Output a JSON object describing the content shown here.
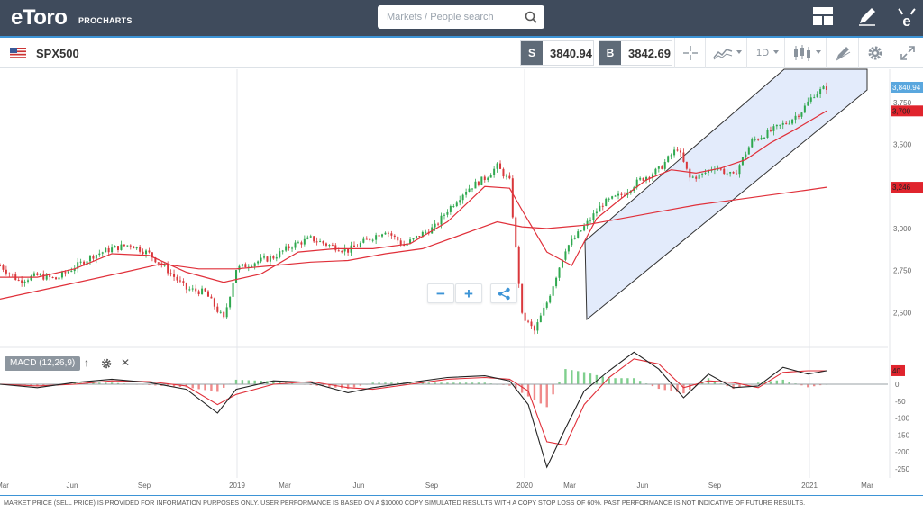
{
  "header": {
    "logo": "eToro",
    "logo_sub": "PROCHARTS",
    "search_placeholder": "Markets / People search",
    "icons": [
      "layout-icon",
      "pencil-icon",
      "etoro-e-icon"
    ]
  },
  "instrument": {
    "symbol": "SPX500",
    "sell_tag": "S",
    "sell_price": "3840.94",
    "buy_tag": "B",
    "buy_price": "3842.69",
    "timeframe": "1D"
  },
  "toolbar_icons": [
    "crosshair-icon",
    "chart-type-icon",
    "indicators-icon",
    "drawing-icon",
    "settings-gear-icon",
    "fullscreen-icon"
  ],
  "indicator": {
    "label": "MACD (12,26,9)",
    "controls": [
      "up-arrow-icon",
      "gear-icon",
      "close-icon"
    ]
  },
  "footer": {
    "disclaimer": "MARKET PRICE (SELL PRICE) IS PROVIDED FOR INFORMATION PURPOSES ONLY. USER PERFORMANCE IS BASED ON A $10000 COPY SIMULATED RESULTS WITH A COPY STOP LOSS OF 60%. PAST PERFORMANCE IS NOT INDICATIVE OF FUTURE RESULTS."
  },
  "colors": {
    "header_bg": "#3f4b5c",
    "accent": "#3d94d6",
    "up_candle": "#2fa84f",
    "down_candle": "#d9373b",
    "ma_line": "#e0303a",
    "channel_fill": "#e3ebfb"
  },
  "chart_data": {
    "type": "candlestick",
    "x_ticks": [
      "Mar",
      "Jun",
      "Sep",
      "2019",
      "Mar",
      "Jun",
      "Sep",
      "2020",
      "Mar",
      "Jun",
      "Sep",
      "2021",
      "Mar"
    ],
    "y_ticks": [
      "2,500",
      "2,750",
      "3,000",
      "3,250",
      "3,500",
      "3,750"
    ],
    "price_tags": [
      {
        "label": "3,840.94",
        "value": 3840.94
      },
      {
        "label": "3,700",
        "value": 3700
      },
      {
        "label": "3,246",
        "value": 3246
      }
    ],
    "macd": {
      "y_ticks": [
        "0",
        "-50",
        "-100",
        "-150",
        "-200",
        "-250"
      ],
      "tag": "40",
      "tag_value": 40
    },
    "channel": "ascending-channel",
    "price_path": [
      [
        0,
        2780
      ],
      [
        3,
        2690
      ],
      [
        6,
        2720
      ],
      [
        9,
        2700
      ],
      [
        12,
        2770
      ],
      [
        15,
        2840
      ],
      [
        18,
        2880
      ],
      [
        21,
        2905
      ],
      [
        24,
        2850
      ],
      [
        27,
        2750
      ],
      [
        30,
        2640
      ],
      [
        33,
        2620
      ],
      [
        36,
        2460
      ],
      [
        38,
        2760
      ],
      [
        41,
        2800
      ],
      [
        44,
        2830
      ],
      [
        47,
        2900
      ],
      [
        50,
        2940
      ],
      [
        53,
        2900
      ],
      [
        56,
        2870
      ],
      [
        59,
        2930
      ],
      [
        62,
        2990
      ],
      [
        65,
        2900
      ],
      [
        68,
        2970
      ],
      [
        70,
        3010
      ],
      [
        72,
        3110
      ],
      [
        75,
        3230
      ],
      [
        78,
        3300
      ],
      [
        80,
        3370
      ],
      [
        82,
        3280
      ],
      [
        84,
        2480
      ],
      [
        86,
        2390
      ],
      [
        88,
        2560
      ],
      [
        91,
        2880
      ],
      [
        94,
        3010
      ],
      [
        97,
        3150
      ],
      [
        100,
        3200
      ],
      [
        103,
        3290
      ],
      [
        106,
        3350
      ],
      [
        109,
        3480
      ],
      [
        111,
        3300
      ],
      [
        113,
        3320
      ],
      [
        115,
        3370
      ],
      [
        118,
        3310
      ],
      [
        121,
        3520
      ],
      [
        124,
        3580
      ],
      [
        127,
        3640
      ],
      [
        129,
        3700
      ],
      [
        131,
        3800
      ],
      [
        133,
        3840.94
      ]
    ],
    "ma_fast_path": [
      [
        0,
        2710
      ],
      [
        6,
        2710
      ],
      [
        12,
        2760
      ],
      [
        18,
        2850
      ],
      [
        24,
        2840
      ],
      [
        30,
        2740
      ],
      [
        36,
        2680
      ],
      [
        42,
        2730
      ],
      [
        48,
        2860
      ],
      [
        54,
        2880
      ],
      [
        60,
        2880
      ],
      [
        66,
        2910
      ],
      [
        72,
        3040
      ],
      [
        78,
        3250
      ],
      [
        82,
        3240
      ],
      [
        84,
        3110
      ],
      [
        88,
        2860
      ],
      [
        92,
        2780
      ],
      [
        96,
        3060
      ],
      [
        100,
        3180
      ],
      [
        104,
        3290
      ],
      [
        108,
        3350
      ],
      [
        112,
        3330
      ],
      [
        116,
        3360
      ],
      [
        120,
        3410
      ],
      [
        124,
        3510
      ],
      [
        128,
        3590
      ],
      [
        133,
        3700
      ]
    ],
    "ma_slow_path": [
      [
        0,
        2580
      ],
      [
        10,
        2660
      ],
      [
        20,
        2740
      ],
      [
        26,
        2790
      ],
      [
        32,
        2760
      ],
      [
        38,
        2760
      ],
      [
        44,
        2780
      ],
      [
        50,
        2800
      ],
      [
        56,
        2810
      ],
      [
        62,
        2850
      ],
      [
        68,
        2880
      ],
      [
        74,
        2960
      ],
      [
        80,
        3040
      ],
      [
        84,
        3010
      ],
      [
        88,
        3000
      ],
      [
        94,
        3020
      ],
      [
        100,
        3060
      ],
      [
        106,
        3100
      ],
      [
        112,
        3140
      ],
      [
        118,
        3170
      ],
      [
        124,
        3200
      ],
      [
        130,
        3230
      ],
      [
        133,
        3246
      ]
    ],
    "macd_path": [
      [
        0,
        0
      ],
      [
        6,
        -10
      ],
      [
        12,
        5
      ],
      [
        18,
        15
      ],
      [
        24,
        5
      ],
      [
        30,
        -15
      ],
      [
        35,
        -85
      ],
      [
        38,
        -15
      ],
      [
        44,
        10
      ],
      [
        50,
        5
      ],
      [
        56,
        -25
      ],
      [
        60,
        -10
      ],
      [
        66,
        5
      ],
      [
        72,
        20
      ],
      [
        78,
        25
      ],
      [
        82,
        10
      ],
      [
        85,
        -60
      ],
      [
        88,
        -245
      ],
      [
        91,
        -130
      ],
      [
        94,
        -20
      ],
      [
        98,
        40
      ],
      [
        102,
        95
      ],
      [
        106,
        45
      ],
      [
        110,
        -40
      ],
      [
        114,
        30
      ],
      [
        118,
        -10
      ],
      [
        122,
        -5
      ],
      [
        126,
        50
      ],
      [
        130,
        30
      ],
      [
        133,
        40
      ]
    ],
    "signal_path": [
      [
        0,
        0
      ],
      [
        6,
        -5
      ],
      [
        12,
        0
      ],
      [
        18,
        10
      ],
      [
        24,
        8
      ],
      [
        30,
        -5
      ],
      [
        35,
        -60
      ],
      [
        38,
        -30
      ],
      [
        44,
        0
      ],
      [
        50,
        8
      ],
      [
        56,
        -10
      ],
      [
        60,
        -15
      ],
      [
        66,
        0
      ],
      [
        72,
        15
      ],
      [
        78,
        20
      ],
      [
        82,
        15
      ],
      [
        85,
        -20
      ],
      [
        88,
        -170
      ],
      [
        91,
        -180
      ],
      [
        94,
        -60
      ],
      [
        98,
        20
      ],
      [
        102,
        75
      ],
      [
        106,
        60
      ],
      [
        110,
        -10
      ],
      [
        114,
        10
      ],
      [
        118,
        5
      ],
      [
        122,
        -10
      ],
      [
        126,
        35
      ],
      [
        130,
        40
      ],
      [
        133,
        40
      ]
    ]
  }
}
